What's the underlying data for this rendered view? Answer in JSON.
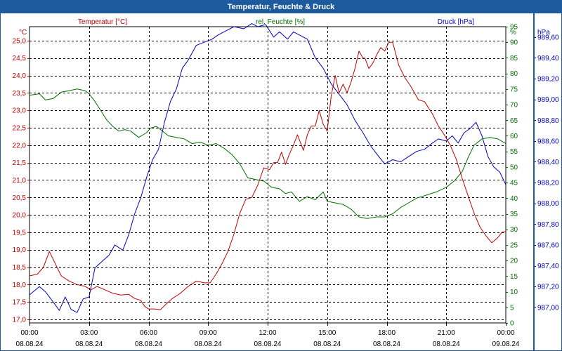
{
  "title": "Temperatur, Feuchte & Druck",
  "colors": {
    "temperature": "#c00000",
    "humidity": "#007000",
    "pressure": "#0000c0",
    "frame": "#1d5b9e",
    "grid": "#000000"
  },
  "chart_data": {
    "type": "line",
    "title": "Temperatur, Feuchte & Druck",
    "grid": true,
    "x": {
      "range": [
        0,
        24
      ],
      "ticks": [
        {
          "h": 0,
          "time": "00:00",
          "date": "08.08.24"
        },
        {
          "h": 3,
          "time": "03:00",
          "date": "08.08.24"
        },
        {
          "h": 6,
          "time": "06:00",
          "date": "08.08.24"
        },
        {
          "h": 9,
          "time": "09:00",
          "date": "08.08.24"
        },
        {
          "h": 12,
          "time": "12:00",
          "date": "08.08.24"
        },
        {
          "h": 15,
          "time": "15:00",
          "date": "08.08.24"
        },
        {
          "h": 18,
          "time": "18:00",
          "date": "08.08.24"
        },
        {
          "h": 21,
          "time": "21:00",
          "date": "08.08.24"
        },
        {
          "h": 24,
          "time": "00:00",
          "date": "09.08.24"
        }
      ]
    },
    "axes": {
      "temperature": {
        "unit": "°C",
        "range": [
          16.9,
          25.4
        ],
        "ticks": [
          "17,0",
          "17,5",
          "18,0",
          "18,5",
          "19,0",
          "19,5",
          "20,0",
          "20,5",
          "21,0",
          "21,5",
          "22,0",
          "22,5",
          "23,0",
          "23,5",
          "24,0",
          "24,5",
          "25,0"
        ],
        "tick_values": [
          17.0,
          17.5,
          18.0,
          18.5,
          19.0,
          19.5,
          20.0,
          20.5,
          21.0,
          21.5,
          22.0,
          22.5,
          23.0,
          23.5,
          24.0,
          24.5,
          25.0
        ]
      },
      "humidity": {
        "unit": "%",
        "range": [
          0,
          95
        ],
        "ticks": [
          "0",
          "5",
          "10",
          "15",
          "20",
          "25",
          "30",
          "35",
          "40",
          "45",
          "50",
          "55",
          "60",
          "65",
          "70",
          "75",
          "80",
          "85",
          "90",
          "95"
        ],
        "tick_values": [
          0,
          5,
          10,
          15,
          20,
          25,
          30,
          35,
          40,
          45,
          50,
          55,
          60,
          65,
          70,
          75,
          80,
          85,
          90,
          95
        ]
      },
      "pressure": {
        "unit": "hPa",
        "range": [
          986.85,
          989.7
        ],
        "ticks": [
          "987,00",
          "987,20",
          "987,40",
          "987,60",
          "987,80",
          "988,00",
          "988,20",
          "988,40",
          "988,60",
          "988,80",
          "989,00",
          "989,20",
          "989,40",
          "989,60"
        ],
        "tick_values": [
          987.0,
          987.2,
          987.4,
          987.6,
          987.8,
          988.0,
          988.2,
          988.4,
          988.6,
          988.8,
          989.0,
          989.2,
          989.4,
          989.6
        ]
      }
    },
    "series": [
      {
        "name": "Temperatur [°C]",
        "axis": "temperature",
        "points": [
          [
            0.0,
            18.25
          ],
          [
            0.4,
            18.3
          ],
          [
            0.7,
            18.5
          ],
          [
            1.0,
            18.95
          ],
          [
            1.3,
            18.6
          ],
          [
            1.6,
            18.25
          ],
          [
            2.0,
            18.1
          ],
          [
            2.4,
            18.0
          ],
          [
            2.8,
            17.95
          ],
          [
            3.1,
            17.85
          ],
          [
            3.4,
            17.95
          ],
          [
            3.8,
            17.85
          ],
          [
            4.2,
            17.75
          ],
          [
            4.6,
            17.7
          ],
          [
            5.0,
            17.72
          ],
          [
            5.3,
            17.6
          ],
          [
            5.6,
            17.55
          ],
          [
            5.8,
            17.38
          ],
          [
            6.0,
            17.3
          ],
          [
            6.3,
            17.3
          ],
          [
            6.6,
            17.28
          ],
          [
            6.9,
            17.45
          ],
          [
            7.2,
            17.6
          ],
          [
            7.6,
            17.75
          ],
          [
            8.0,
            17.95
          ],
          [
            8.4,
            18.1
          ],
          [
            8.8,
            18.05
          ],
          [
            9.1,
            18.05
          ],
          [
            9.4,
            18.3
          ],
          [
            9.7,
            18.6
          ],
          [
            10.0,
            18.95
          ],
          [
            10.3,
            19.45
          ],
          [
            10.6,
            20.05
          ],
          [
            10.9,
            20.45
          ],
          [
            11.2,
            20.5
          ],
          [
            11.5,
            20.85
          ],
          [
            11.8,
            21.35
          ],
          [
            12.1,
            21.3
          ],
          [
            12.3,
            21.5
          ],
          [
            12.5,
            21.5
          ],
          [
            12.7,
            21.8
          ],
          [
            12.9,
            21.45
          ],
          [
            13.1,
            21.75
          ],
          [
            13.3,
            22.0
          ],
          [
            13.5,
            22.3
          ],
          [
            13.8,
            21.85
          ],
          [
            14.0,
            22.3
          ],
          [
            14.2,
            22.55
          ],
          [
            14.4,
            22.55
          ],
          [
            14.6,
            23.0
          ],
          [
            14.8,
            22.6
          ],
          [
            15.0,
            22.4
          ],
          [
            15.2,
            23.4
          ],
          [
            15.4,
            24.0
          ],
          [
            15.6,
            23.5
          ],
          [
            15.8,
            23.75
          ],
          [
            16.0,
            23.5
          ],
          [
            16.2,
            23.8
          ],
          [
            16.4,
            24.2
          ],
          [
            16.6,
            24.7
          ],
          [
            16.8,
            24.5
          ],
          [
            16.9,
            24.5
          ],
          [
            17.1,
            24.2
          ],
          [
            17.3,
            24.35
          ],
          [
            17.5,
            24.6
          ],
          [
            17.7,
            24.8
          ],
          [
            17.9,
            24.7
          ],
          [
            18.1,
            24.95
          ],
          [
            18.3,
            24.95
          ],
          [
            18.6,
            24.3
          ],
          [
            18.9,
            23.95
          ],
          [
            19.2,
            23.7
          ],
          [
            19.6,
            23.3
          ],
          [
            19.9,
            23.25
          ],
          [
            20.3,
            22.9
          ],
          [
            20.6,
            22.55
          ],
          [
            20.9,
            22.3
          ],
          [
            21.2,
            22.0
          ],
          [
            21.5,
            21.6
          ],
          [
            21.8,
            21.05
          ],
          [
            22.1,
            20.55
          ],
          [
            22.4,
            20.05
          ],
          [
            22.7,
            19.65
          ],
          [
            23.0,
            19.4
          ],
          [
            23.3,
            19.2
          ],
          [
            23.6,
            19.35
          ],
          [
            23.8,
            19.5
          ],
          [
            24.0,
            19.52
          ]
        ]
      },
      {
        "name": "rel. Feuchte [%]",
        "axis": "humidity",
        "points": [
          [
            0.0,
            73.0
          ],
          [
            0.5,
            73.5
          ],
          [
            0.8,
            71.5
          ],
          [
            1.2,
            72.0
          ],
          [
            1.6,
            74.0
          ],
          [
            2.0,
            74.5
          ],
          [
            2.4,
            75.0
          ],
          [
            2.8,
            74.5
          ],
          [
            3.0,
            73.5
          ],
          [
            3.3,
            71.0
          ],
          [
            3.6,
            68.0
          ],
          [
            3.9,
            65.0
          ],
          [
            4.2,
            63.0
          ],
          [
            4.5,
            61.5
          ],
          [
            4.8,
            62.0
          ],
          [
            5.1,
            61.5
          ],
          [
            5.5,
            59.5
          ],
          [
            5.9,
            61.0
          ],
          [
            6.1,
            62.5
          ],
          [
            6.4,
            63.0
          ],
          [
            6.7,
            61.5
          ],
          [
            7.0,
            60.0
          ],
          [
            7.4,
            59.5
          ],
          [
            7.8,
            59.0
          ],
          [
            8.2,
            57.5
          ],
          [
            8.6,
            58.0
          ],
          [
            9.0,
            57.0
          ],
          [
            9.4,
            57.5
          ],
          [
            9.8,
            56.0
          ],
          [
            10.2,
            54.0
          ],
          [
            10.6,
            51.0
          ],
          [
            11.0,
            46.5
          ],
          [
            11.4,
            46.0
          ],
          [
            11.8,
            45.5
          ],
          [
            12.2,
            43.5
          ],
          [
            12.6,
            43.0
          ],
          [
            12.9,
            41.5
          ],
          [
            13.2,
            42.0
          ],
          [
            13.6,
            39.0
          ],
          [
            14.0,
            40.5
          ],
          [
            14.4,
            39.5
          ],
          [
            14.8,
            42.0
          ],
          [
            15.0,
            39.0
          ],
          [
            15.4,
            38.5
          ],
          [
            15.8,
            38.0
          ],
          [
            16.2,
            36.5
          ],
          [
            16.6,
            34.0
          ],
          [
            17.0,
            33.5
          ],
          [
            17.5,
            34.0
          ],
          [
            17.9,
            34.0
          ],
          [
            18.3,
            35.0
          ],
          [
            18.7,
            37.0
          ],
          [
            19.1,
            38.5
          ],
          [
            19.5,
            40.0
          ],
          [
            20.0,
            41.0
          ],
          [
            20.5,
            42.0
          ],
          [
            21.0,
            43.5
          ],
          [
            21.4,
            45.5
          ],
          [
            21.8,
            48.5
          ],
          [
            22.1,
            53.0
          ],
          [
            22.4,
            57.0
          ],
          [
            22.8,
            59.0
          ],
          [
            23.2,
            59.5
          ],
          [
            23.6,
            59.0
          ],
          [
            24.0,
            57.5
          ]
        ]
      },
      {
        "name": "Druck [hPa]",
        "axis": "pressure",
        "points": [
          [
            0.0,
            987.12
          ],
          [
            0.5,
            987.2
          ],
          [
            0.8,
            987.15
          ],
          [
            1.2,
            987.05
          ],
          [
            1.5,
            986.97
          ],
          [
            1.8,
            987.1
          ],
          [
            2.1,
            986.98
          ],
          [
            2.4,
            986.95
          ],
          [
            2.7,
            987.08
          ],
          [
            3.0,
            987.1
          ],
          [
            3.3,
            987.38
          ],
          [
            3.7,
            987.45
          ],
          [
            4.0,
            987.5
          ],
          [
            4.3,
            987.6
          ],
          [
            4.7,
            987.55
          ],
          [
            5.0,
            987.7
          ],
          [
            5.3,
            987.9
          ],
          [
            5.6,
            988.05
          ],
          [
            5.9,
            988.25
          ],
          [
            6.2,
            988.42
          ],
          [
            6.5,
            988.52
          ],
          [
            6.8,
            988.78
          ],
          [
            7.1,
            988.98
          ],
          [
            7.4,
            989.1
          ],
          [
            7.7,
            989.3
          ],
          [
            8.0,
            989.38
          ],
          [
            8.4,
            989.52
          ],
          [
            8.8,
            989.55
          ],
          [
            9.2,
            989.58
          ],
          [
            9.5,
            989.62
          ],
          [
            9.9,
            989.66
          ],
          [
            10.3,
            989.7
          ],
          [
            10.8,
            989.68
          ],
          [
            11.2,
            989.73
          ],
          [
            11.5,
            989.7
          ],
          [
            11.9,
            989.72
          ],
          [
            12.3,
            989.6
          ],
          [
            12.6,
            989.65
          ],
          [
            13.0,
            989.58
          ],
          [
            13.3,
            989.65
          ],
          [
            13.6,
            989.62
          ],
          [
            14.0,
            989.58
          ],
          [
            14.4,
            989.4
          ],
          [
            14.8,
            989.3
          ],
          [
            15.2,
            989.15
          ],
          [
            15.6,
            989.05
          ],
          [
            16.0,
            988.95
          ],
          [
            16.4,
            988.8
          ],
          [
            16.8,
            988.68
          ],
          [
            17.2,
            988.55
          ],
          [
            17.6,
            988.45
          ],
          [
            17.9,
            988.38
          ],
          [
            18.3,
            988.42
          ],
          [
            18.7,
            988.4
          ],
          [
            19.1,
            988.45
          ],
          [
            19.5,
            988.5
          ],
          [
            19.9,
            988.52
          ],
          [
            20.3,
            988.58
          ],
          [
            20.6,
            988.62
          ],
          [
            21.0,
            988.6
          ],
          [
            21.3,
            988.65
          ],
          [
            21.6,
            988.58
          ],
          [
            21.9,
            988.68
          ],
          [
            22.2,
            988.72
          ],
          [
            22.5,
            988.78
          ],
          [
            22.8,
            988.65
          ],
          [
            23.1,
            988.45
          ],
          [
            23.4,
            988.35
          ],
          [
            23.7,
            988.3
          ],
          [
            24.0,
            988.18
          ]
        ]
      }
    ]
  }
}
